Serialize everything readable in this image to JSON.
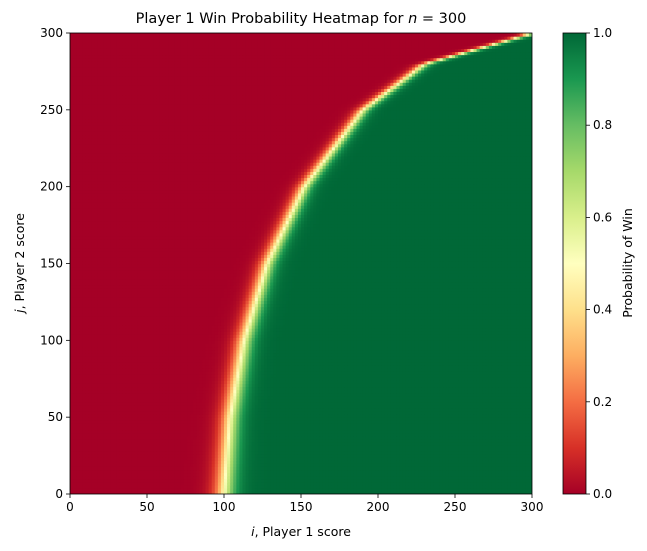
{
  "chart_data": {
    "type": "heatmap",
    "title": "Player 1 Win Probability Heatmap for n = 300",
    "title_prefix": "Player 1 Win Probability Heatmap for ",
    "title_var": "n",
    "title_suffix": " = 300",
    "xlabel_var": "i",
    "xlabel_rest": ", Player 1 score",
    "ylabel_var": "j",
    "ylabel_rest": ", Player 2 score",
    "xlim": [
      0,
      300
    ],
    "ylim": [
      0,
      300
    ],
    "x_ticks": [
      0,
      50,
      100,
      150,
      200,
      250,
      300
    ],
    "y_ticks": [
      0,
      50,
      100,
      150,
      200,
      250,
      300
    ],
    "grid": false,
    "colormap": "RdYlGn",
    "colorbar": {
      "label": "Probability of Win",
      "range": [
        0.0,
        1.0
      ],
      "ticks": [
        "0.0",
        "0.2",
        "0.4",
        "0.6",
        "0.8",
        "1.0"
      ]
    },
    "boundary_curve_p50": [
      {
        "j": 0,
        "i": 100
      },
      {
        "j": 50,
        "i": 104
      },
      {
        "j": 100,
        "i": 113
      },
      {
        "j": 150,
        "i": 128
      },
      {
        "j": 200,
        "i": 152
      },
      {
        "j": 250,
        "i": 190
      },
      {
        "j": 280,
        "i": 230
      },
      {
        "j": 300,
        "i": 300
      }
    ],
    "transition_width": 12,
    "grid_cells": 150
  },
  "colors": {
    "stops": [
      "#a50026",
      "#d73027",
      "#f46d43",
      "#fdae61",
      "#fee08b",
      "#ffffbf",
      "#d9ef8b",
      "#a6d96a",
      "#66bd63",
      "#1a9850",
      "#006837"
    ]
  }
}
